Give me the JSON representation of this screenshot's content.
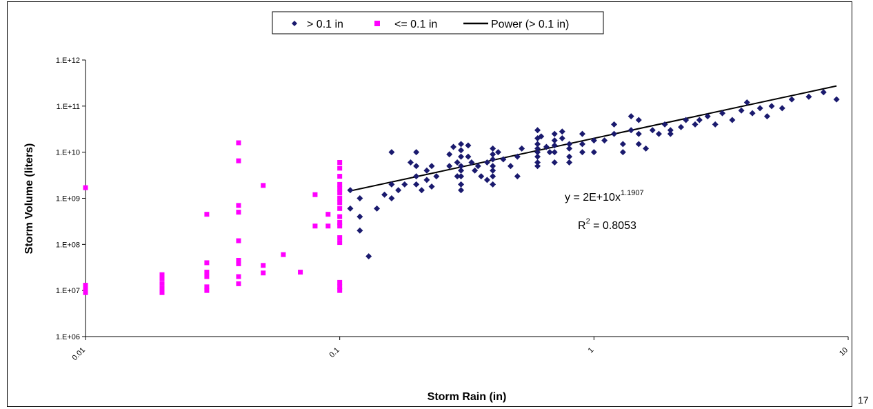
{
  "page_number": "17",
  "chart_data": {
    "type": "scatter",
    "title": "",
    "xlabel": "Storm Rain (in)",
    "ylabel": "Storm Volume (liters)",
    "x_scale": "log",
    "y_scale": "log",
    "xlim": [
      0.01,
      10
    ],
    "ylim": [
      1000000.0,
      1000000000000.0
    ],
    "x_ticks": [
      0.01,
      0.1,
      1,
      10
    ],
    "x_tick_labels": [
      "0.01",
      "0.1",
      "1",
      "10"
    ],
    "y_ticks": [
      1000000.0,
      10000000.0,
      100000000.0,
      1000000000.0,
      10000000000.0,
      100000000000.0,
      1000000000000.0
    ],
    "y_tick_labels": [
      "1.E+06",
      "1.E+07",
      "1.E+08",
      "1.E+09",
      "1.E+10",
      "1.E+11",
      "1.E+12"
    ],
    "grid": false,
    "legend_position": "top-center",
    "series": [
      {
        "name": "> 0.1 in",
        "marker": "diamond",
        "color": "#1a1a6e",
        "points": [
          [
            0.11,
            1500000000.0
          ],
          [
            0.11,
            600000000.0
          ],
          [
            0.12,
            1000000000.0
          ],
          [
            0.12,
            400000000.0
          ],
          [
            0.12,
            200000000.0
          ],
          [
            0.13,
            55000000.0
          ],
          [
            0.14,
            600000000.0
          ],
          [
            0.15,
            1200000000.0
          ],
          [
            0.16,
            2000000000.0
          ],
          [
            0.16,
            1000000000.0
          ],
          [
            0.16,
            10000000000.0
          ],
          [
            0.17,
            1500000000.0
          ],
          [
            0.18,
            2000000000.0
          ],
          [
            0.19,
            6000000000.0
          ],
          [
            0.2,
            10000000000.0
          ],
          [
            0.2,
            5000000000.0
          ],
          [
            0.2,
            3000000000.0
          ],
          [
            0.2,
            2000000000.0
          ],
          [
            0.21,
            1500000000.0
          ],
          [
            0.22,
            4000000000.0
          ],
          [
            0.22,
            2500000000.0
          ],
          [
            0.23,
            5000000000.0
          ],
          [
            0.23,
            1800000000.0
          ],
          [
            0.24,
            3000000000.0
          ],
          [
            0.27,
            9000000000.0
          ],
          [
            0.27,
            5000000000.0
          ],
          [
            0.28,
            13000000000.0
          ],
          [
            0.29,
            6000000000.0
          ],
          [
            0.29,
            3000000000.0
          ],
          [
            0.3,
            15000000000.0
          ],
          [
            0.3,
            11000000000.0
          ],
          [
            0.3,
            8000000000.0
          ],
          [
            0.3,
            5000000000.0
          ],
          [
            0.3,
            4000000000.0
          ],
          [
            0.3,
            3000000000.0
          ],
          [
            0.3,
            2000000000.0
          ],
          [
            0.3,
            1500000000.0
          ],
          [
            0.32,
            14000000000.0
          ],
          [
            0.32,
            8000000000.0
          ],
          [
            0.33,
            6000000000.0
          ],
          [
            0.34,
            4000000000.0
          ],
          [
            0.35,
            5000000000.0
          ],
          [
            0.36,
            3000000000.0
          ],
          [
            0.38,
            2500000000.0
          ],
          [
            0.38,
            6000000000.0
          ],
          [
            0.4,
            12000000000.0
          ],
          [
            0.4,
            9000000000.0
          ],
          [
            0.4,
            7000000000.0
          ],
          [
            0.4,
            5000000000.0
          ],
          [
            0.4,
            4000000000.0
          ],
          [
            0.4,
            3000000000.0
          ],
          [
            0.4,
            2000000000.0
          ],
          [
            0.42,
            10000000000.0
          ],
          [
            0.44,
            7000000000.0
          ],
          [
            0.47,
            5000000000.0
          ],
          [
            0.5,
            8000000000.0
          ],
          [
            0.5,
            3000000000.0
          ],
          [
            0.52,
            12000000000.0
          ],
          [
            0.6,
            30000000000.0
          ],
          [
            0.6,
            20000000000.0
          ],
          [
            0.6,
            15000000000.0
          ],
          [
            0.6,
            12000000000.0
          ],
          [
            0.6,
            10000000000.0
          ],
          [
            0.6,
            8000000000.0
          ],
          [
            0.6,
            6000000000.0
          ],
          [
            0.6,
            5000000000.0
          ],
          [
            0.62,
            22000000000.0
          ],
          [
            0.65,
            13000000000.0
          ],
          [
            0.67,
            10000000000.0
          ],
          [
            0.7,
            25000000000.0
          ],
          [
            0.7,
            18000000000.0
          ],
          [
            0.7,
            14000000000.0
          ],
          [
            0.7,
            10000000000.0
          ],
          [
            0.7,
            6000000000.0
          ],
          [
            0.75,
            28000000000.0
          ],
          [
            0.75,
            20000000000.0
          ],
          [
            0.8,
            15000000000.0
          ],
          [
            0.8,
            12000000000.0
          ],
          [
            0.8,
            8000000000.0
          ],
          [
            0.8,
            6000000000.0
          ],
          [
            0.9,
            25000000000.0
          ],
          [
            0.9,
            15000000000.0
          ],
          [
            0.9,
            10000000000.0
          ],
          [
            1.0,
            18000000000.0
          ],
          [
            1.0,
            10000000000.0
          ],
          [
            1.1,
            18000000000.0
          ],
          [
            1.2,
            25000000000.0
          ],
          [
            1.2,
            40000000000.0
          ],
          [
            1.3,
            15000000000.0
          ],
          [
            1.3,
            10000000000.0
          ],
          [
            1.4,
            60000000000.0
          ],
          [
            1.4,
            30000000000.0
          ],
          [
            1.5,
            50000000000.0
          ],
          [
            1.5,
            25000000000.0
          ],
          [
            1.5,
            15000000000.0
          ],
          [
            1.6,
            12000000000.0
          ],
          [
            1.7,
            30000000000.0
          ],
          [
            1.8,
            25000000000.0
          ],
          [
            1.9,
            40000000000.0
          ],
          [
            2.0,
            30000000000.0
          ],
          [
            2.0,
            25000000000.0
          ],
          [
            2.2,
            35000000000.0
          ],
          [
            2.3,
            50000000000.0
          ],
          [
            2.5,
            40000000000.0
          ],
          [
            2.6,
            50000000000.0
          ],
          [
            2.8,
            60000000000.0
          ],
          [
            3.0,
            40000000000.0
          ],
          [
            3.2,
            70000000000.0
          ],
          [
            3.5,
            50000000000.0
          ],
          [
            3.8,
            80000000000.0
          ],
          [
            4.0,
            120000000000.0
          ],
          [
            4.2,
            70000000000.0
          ],
          [
            4.5,
            90000000000.0
          ],
          [
            4.8,
            60000000000.0
          ],
          [
            5.0,
            100000000000.0
          ],
          [
            5.5,
            90000000000.0
          ],
          [
            6.0,
            140000000000.0
          ],
          [
            7.0,
            160000000000.0
          ],
          [
            8.0,
            200000000000.0
          ],
          [
            9.0,
            140000000000.0
          ]
        ]
      },
      {
        "name": "<= 0.1 in",
        "marker": "square",
        "color": "#ff00ff",
        "points": [
          [
            0.01,
            1700000000.0
          ],
          [
            0.01,
            13000000.0
          ],
          [
            0.01,
            11000000.0
          ],
          [
            0.01,
            10000000.0
          ],
          [
            0.01,
            9000000.0
          ],
          [
            0.02,
            22000000.0
          ],
          [
            0.02,
            18000000.0
          ],
          [
            0.02,
            14000000.0
          ],
          [
            0.02,
            11000000.0
          ],
          [
            0.02,
            9000000.0
          ],
          [
            0.03,
            450000000.0
          ],
          [
            0.03,
            40000000.0
          ],
          [
            0.03,
            25000000.0
          ],
          [
            0.03,
            20000000.0
          ],
          [
            0.03,
            12000000.0
          ],
          [
            0.03,
            10000000.0
          ],
          [
            0.04,
            16000000000.0
          ],
          [
            0.04,
            6500000000.0
          ],
          [
            0.04,
            700000000.0
          ],
          [
            0.04,
            500000000.0
          ],
          [
            0.04,
            120000000.0
          ],
          [
            0.04,
            45000000.0
          ],
          [
            0.04,
            38000000.0
          ],
          [
            0.04,
            20000000.0
          ],
          [
            0.04,
            14000000.0
          ],
          [
            0.05,
            1900000000.0
          ],
          [
            0.05,
            35000000.0
          ],
          [
            0.05,
            24000000.0
          ],
          [
            0.06,
            60000000.0
          ],
          [
            0.07,
            25000000.0
          ],
          [
            0.08,
            1200000000.0
          ],
          [
            0.08,
            250000000.0
          ],
          [
            0.09,
            450000000.0
          ],
          [
            0.09,
            250000000.0
          ],
          [
            0.1,
            6000000000.0
          ],
          [
            0.1,
            4500000000.0
          ],
          [
            0.1,
            3000000000.0
          ],
          [
            0.1,
            2000000000.0
          ],
          [
            0.1,
            1600000000.0
          ],
          [
            0.1,
            1300000000.0
          ],
          [
            0.1,
            1000000000.0
          ],
          [
            0.1,
            800000000.0
          ],
          [
            0.1,
            600000000.0
          ],
          [
            0.1,
            400000000.0
          ],
          [
            0.1,
            300000000.0
          ],
          [
            0.1,
            250000000.0
          ],
          [
            0.1,
            140000000.0
          ],
          [
            0.1,
            110000000.0
          ],
          [
            0.1,
            15000000.0
          ],
          [
            0.1,
            12000000.0
          ],
          [
            0.1,
            10000000.0
          ]
        ]
      },
      {
        "name": "Power (> 0.1 in)",
        "type": "line",
        "color": "#000000",
        "x": [
          0.11,
          9.0
        ],
        "formula": "y = 2E+10 x^1.1907"
      }
    ],
    "annotation": {
      "equation_prefix": "y = 2E+10x",
      "equation_exponent": "1.1907",
      "r2_prefix": "R",
      "r2_exponent": "2",
      "r2_suffix": " = 0.8053"
    }
  }
}
